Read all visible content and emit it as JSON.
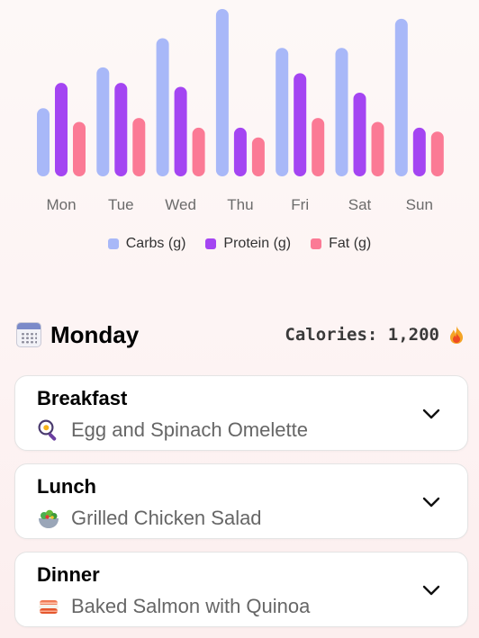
{
  "chart_data": {
    "type": "bar",
    "categories": [
      "Mon",
      "Tue",
      "Wed",
      "Thu",
      "Fri",
      "Sat",
      "Sun"
    ],
    "series": [
      {
        "name": "Carbs (g)",
        "color": "#a8b8f8",
        "values": [
          35,
          56,
          71,
          86,
          66,
          66,
          81
        ]
      },
      {
        "name": "Protein (g)",
        "color": "#a445f2",
        "values": [
          48,
          48,
          46,
          25,
          53,
          43,
          25
        ]
      },
      {
        "name": "Fat (g)",
        "color": "#fb7a95",
        "values": [
          28,
          30,
          25,
          20,
          30,
          28,
          23
        ]
      }
    ],
    "ylim": [
      0,
      86
    ],
    "legend_position": "bottom"
  },
  "legend": [
    {
      "label": "Carbs (g)",
      "color": "#a8b8f8"
    },
    {
      "label": "Protein (g)",
      "color": "#a445f2"
    },
    {
      "label": "Fat (g)",
      "color": "#fb7a95"
    }
  ],
  "day": {
    "title": "Monday",
    "calories": "Calories: 1,200",
    "calendar_icon": "calendar-icon",
    "flame_icon": "fire-icon"
  },
  "meals": [
    {
      "title": "Breakfast",
      "name": "Egg and Spinach Omelette",
      "icon": "frying-pan-icon"
    },
    {
      "title": "Lunch",
      "name": "Grilled Chicken Salad",
      "icon": "salad-icon"
    },
    {
      "title": "Dinner",
      "name": "Baked Salmon with Quinoa",
      "icon": "sushi-icon"
    }
  ]
}
